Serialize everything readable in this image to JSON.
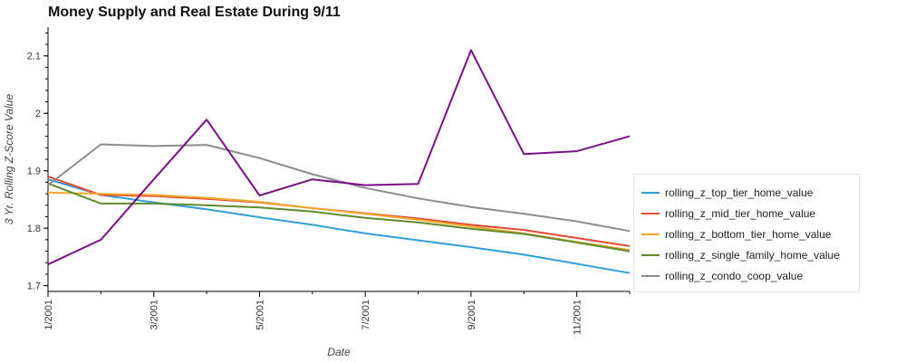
{
  "chart_data": {
    "type": "line",
    "title": "Money Supply and Real Estate During 9/11",
    "xlabel": "Date",
    "ylabel": "3 Yr. Rolling Z-Score Value",
    "x": [
      "2001-01",
      "2001-02",
      "2001-03",
      "2001-04",
      "2001-05",
      "2001-06",
      "2001-07",
      "2001-08",
      "2001-09",
      "2001-10",
      "2001-11",
      "2001-12"
    ],
    "x_ticks": [
      {
        "x": "2001-01",
        "label": "1/2001"
      },
      {
        "x": "2001-03",
        "label": "3/2001"
      },
      {
        "x": "2001-05",
        "label": "5/2001"
      },
      {
        "x": "2001-07",
        "label": "7/2001"
      },
      {
        "x": "2001-09",
        "label": "9/2001"
      },
      {
        "x": "2001-11",
        "label": "11/2001"
      }
    ],
    "ylim": [
      1.69,
      2.15
    ],
    "y_ticks": [
      {
        "value": 1.7,
        "label": "1.7"
      },
      {
        "value": 1.8,
        "label": "1.8"
      },
      {
        "value": 1.9,
        "label": "1.9"
      },
      {
        "value": 2.0,
        "label": "2"
      },
      {
        "value": 2.1,
        "label": "2.1"
      }
    ],
    "legend_position": "right",
    "grid": false,
    "series": [
      {
        "name": "rolling_z_top_tier_home_value",
        "color": "#31a0d8",
        "values": [
          1.885,
          1.858,
          1.845,
          1.833,
          1.819,
          1.806,
          1.791,
          1.779,
          1.767,
          1.754,
          1.738,
          1.722
        ]
      },
      {
        "name": "rolling_z_mid_tier_home_value",
        "color": "#e34a33",
        "values": [
          1.89,
          1.858,
          1.856,
          1.851,
          1.845,
          1.835,
          1.826,
          1.817,
          1.806,
          1.797,
          1.783,
          1.769
        ]
      },
      {
        "name": "rolling_z_bottom_tier_home_value",
        "color": "#f0a830",
        "values": [
          1.862,
          1.86,
          1.858,
          1.853,
          1.846,
          1.835,
          1.825,
          1.815,
          1.803,
          1.791,
          1.776,
          1.762
        ]
      },
      {
        "name": "rolling_z_single_family_home_value",
        "color": "#5e8a2e",
        "values": [
          1.878,
          1.843,
          1.843,
          1.84,
          1.836,
          1.829,
          1.818,
          1.81,
          1.799,
          1.79,
          1.775,
          1.76
        ]
      },
      {
        "name": "rolling_z_condo_coop_value",
        "color": "#8c8c8c",
        "values": [
          1.875,
          1.946,
          1.943,
          1.945,
          1.922,
          1.894,
          1.87,
          1.852,
          1.837,
          1.825,
          1.812,
          1.795
        ]
      },
      {
        "name": "",
        "color": "#7b0f85",
        "values": [
          1.737,
          1.78,
          1.885,
          1.989,
          1.857,
          1.885,
          1.875,
          1.877,
          2.11,
          1.929,
          1.934,
          1.96
        ]
      }
    ]
  }
}
